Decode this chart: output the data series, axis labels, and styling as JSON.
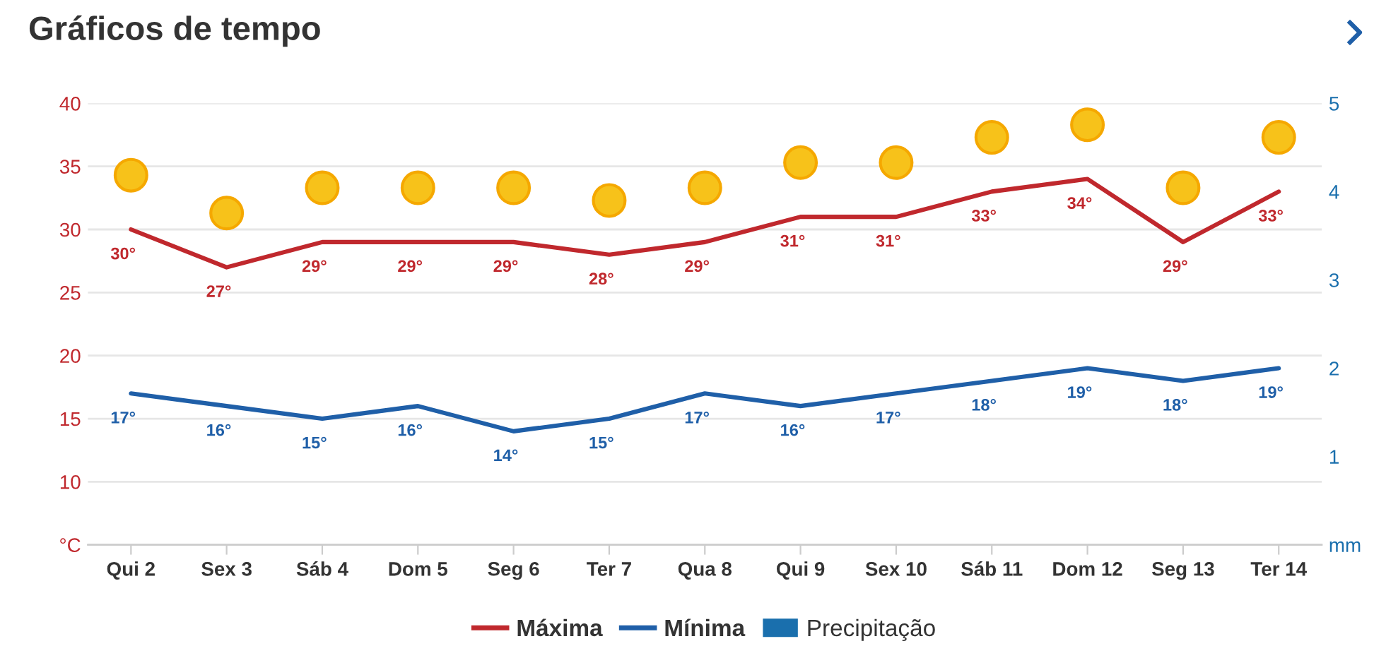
{
  "chart_data": {
    "type": "line",
    "title": "Gráficos de tempo",
    "categories": [
      "Qui 2",
      "Sex 3",
      "Sáb 4",
      "Dom 5",
      "Seg 6",
      "Ter 7",
      "Qua 8",
      "Qui 9",
      "Sex 10",
      "Sáb 11",
      "Dom 12",
      "Seg 13",
      "Ter 14"
    ],
    "series": [
      {
        "name": "Máxima",
        "color": "#c0282d",
        "values": [
          30,
          27,
          29,
          29,
          29,
          28,
          29,
          31,
          31,
          33,
          34,
          29,
          33
        ],
        "value_labels": [
          "30°",
          "27°",
          "29°",
          "29°",
          "29°",
          "28°",
          "29°",
          "31°",
          "31°",
          "33°",
          "34°",
          "29°",
          "33°"
        ]
      },
      {
        "name": "Mínima",
        "color": "#1f5fa8",
        "values": [
          17,
          16,
          15,
          16,
          14,
          15,
          17,
          16,
          17,
          18,
          19,
          18,
          19
        ],
        "value_labels": [
          "17°",
          "16°",
          "15°",
          "16°",
          "14°",
          "15°",
          "17°",
          "16°",
          "17°",
          "18°",
          "19°",
          "18°",
          "19°"
        ]
      },
      {
        "name": "Precipitação",
        "type": "bar",
        "color": "#1a6fad",
        "values": [
          null,
          null,
          null,
          null,
          null,
          null,
          null,
          null,
          null,
          null,
          null,
          null,
          null
        ]
      }
    ],
    "ylim": [
      5,
      40
    ],
    "yticks": [
      {
        "value": 5,
        "label": "°C"
      },
      10,
      15,
      20,
      25,
      30,
      35,
      40
    ],
    "y2lim": [
      0,
      5
    ],
    "y2ticks": [
      {
        "value": 0,
        "label": "mm"
      },
      1,
      2,
      3,
      4,
      5
    ],
    "grid": "y",
    "legend": "bottom",
    "marker": "none",
    "line_style": "solid"
  }
}
